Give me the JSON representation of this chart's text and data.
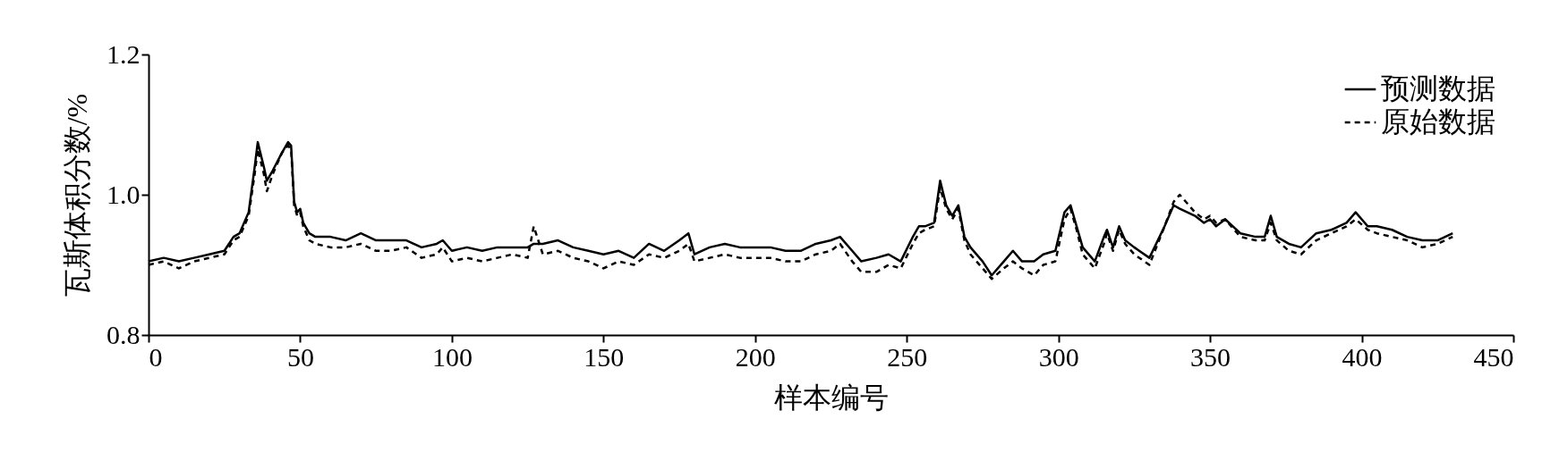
{
  "chart_data": {
    "type": "line",
    "xlabel": "样本编号",
    "ylabel": "瓦斯体积分数/%",
    "x": [
      0,
      5,
      10,
      15,
      20,
      25,
      28,
      30,
      33,
      35,
      36,
      38,
      39,
      41,
      44,
      46,
      47,
      48,
      49,
      50,
      51,
      53,
      55,
      60,
      65,
      70,
      75,
      80,
      85,
      90,
      95,
      97,
      100,
      105,
      110,
      115,
      120,
      125,
      127,
      130,
      135,
      140,
      145,
      150,
      155,
      160,
      165,
      170,
      175,
      178,
      180,
      185,
      190,
      195,
      200,
      205,
      210,
      215,
      220,
      225,
      228,
      232,
      235,
      240,
      244,
      248,
      252,
      254,
      256,
      259,
      261,
      263,
      265,
      267,
      269,
      271,
      275,
      278,
      282,
      285,
      288,
      292,
      295,
      299,
      302,
      304,
      306,
      308,
      312,
      315,
      316,
      318,
      320,
      322,
      325,
      330,
      335,
      338,
      340,
      345,
      348,
      350,
      352,
      355,
      360,
      365,
      368,
      370,
      372,
      376,
      380,
      385,
      390,
      395,
      398,
      402,
      405,
      410,
      415,
      420,
      425,
      430
    ],
    "series": [
      {
        "name": "预测数据",
        "color": "#000000",
        "line_style": "solid",
        "values": [
          0.905,
          0.91,
          0.905,
          0.91,
          0.915,
          0.92,
          0.94,
          0.945,
          0.975,
          1.04,
          1.075,
          1.04,
          1.02,
          1.035,
          1.06,
          1.075,
          1.07,
          0.99,
          0.975,
          0.98,
          0.96,
          0.945,
          0.94,
          0.94,
          0.935,
          0.945,
          0.935,
          0.935,
          0.935,
          0.925,
          0.93,
          0.935,
          0.92,
          0.925,
          0.92,
          0.925,
          0.925,
          0.925,
          0.93,
          0.93,
          0.935,
          0.925,
          0.92,
          0.915,
          0.92,
          0.91,
          0.93,
          0.92,
          0.935,
          0.945,
          0.915,
          0.925,
          0.93,
          0.925,
          0.925,
          0.925,
          0.92,
          0.92,
          0.93,
          0.935,
          0.94,
          0.92,
          0.905,
          0.91,
          0.915,
          0.905,
          0.94,
          0.955,
          0.955,
          0.96,
          1.02,
          0.985,
          0.97,
          0.985,
          0.94,
          0.925,
          0.905,
          0.885,
          0.905,
          0.92,
          0.905,
          0.905,
          0.915,
          0.92,
          0.975,
          0.985,
          0.955,
          0.925,
          0.905,
          0.94,
          0.95,
          0.925,
          0.955,
          0.935,
          0.925,
          0.91,
          0.955,
          0.985,
          0.98,
          0.97,
          0.96,
          0.965,
          0.955,
          0.965,
          0.945,
          0.94,
          0.94,
          0.97,
          0.94,
          0.93,
          0.925,
          0.945,
          0.95,
          0.96,
          0.975,
          0.955,
          0.955,
          0.95,
          0.94,
          0.935,
          0.935,
          0.945
        ]
      },
      {
        "name": "原始数据",
        "color": "#000000",
        "line_style": "dashed",
        "values": [
          0.9,
          0.905,
          0.895,
          0.905,
          0.91,
          0.915,
          0.935,
          0.94,
          0.97,
          1.03,
          1.065,
          1.03,
          1.005,
          1.03,
          1.06,
          1.07,
          1.065,
          0.985,
          0.97,
          0.975,
          0.955,
          0.935,
          0.93,
          0.925,
          0.925,
          0.93,
          0.92,
          0.92,
          0.925,
          0.91,
          0.915,
          0.925,
          0.905,
          0.91,
          0.905,
          0.91,
          0.915,
          0.91,
          0.955,
          0.915,
          0.92,
          0.91,
          0.905,
          0.895,
          0.905,
          0.9,
          0.915,
          0.91,
          0.92,
          0.93,
          0.905,
          0.91,
          0.915,
          0.91,
          0.91,
          0.91,
          0.905,
          0.905,
          0.915,
          0.92,
          0.93,
          0.905,
          0.89,
          0.89,
          0.9,
          0.895,
          0.93,
          0.945,
          0.95,
          0.955,
          1.01,
          0.98,
          0.965,
          0.98,
          0.935,
          0.915,
          0.895,
          0.88,
          0.895,
          0.905,
          0.895,
          0.885,
          0.9,
          0.905,
          0.965,
          0.98,
          0.95,
          0.915,
          0.895,
          0.93,
          0.945,
          0.92,
          0.95,
          0.93,
          0.915,
          0.9,
          0.955,
          0.99,
          1.0,
          0.975,
          0.965,
          0.97,
          0.96,
          0.965,
          0.94,
          0.935,
          0.935,
          0.96,
          0.935,
          0.92,
          0.915,
          0.935,
          0.945,
          0.955,
          0.965,
          0.95,
          0.945,
          0.94,
          0.935,
          0.925,
          0.93,
          0.94
        ]
      }
    ],
    "xlim": [
      0,
      450
    ],
    "xticks": [
      0,
      50,
      100,
      150,
      200,
      250,
      300,
      350,
      400,
      450
    ],
    "ylim": [
      0.8,
      1.2
    ],
    "yticks": [
      {
        "value": 0.8,
        "label": "0.8"
      },
      {
        "value": 1.0,
        "label": "1.0"
      },
      {
        "value": 1.2,
        "label": "1.2"
      }
    ],
    "grid": false,
    "legend": "top right",
    "marker": "none"
  }
}
